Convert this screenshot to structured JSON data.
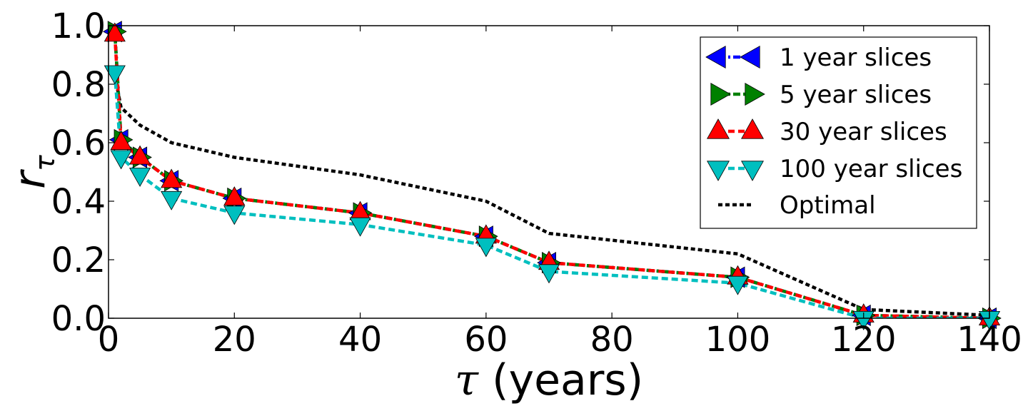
{
  "chart_data": {
    "type": "line",
    "title": "",
    "xlabel_symbol": "τ",
    "xlabel_text": " (years)",
    "ylabel_main": "r",
    "ylabel_sub": "τ",
    "xlim": [
      0,
      140
    ],
    "ylim": [
      0,
      1.0
    ],
    "xticks": [
      0,
      20,
      40,
      60,
      80,
      100,
      120,
      140
    ],
    "xtick_labels": [
      "0",
      "20",
      "40",
      "60",
      "80",
      "100",
      "120",
      "140"
    ],
    "yticks": [
      0,
      0.2,
      0.4,
      0.6,
      0.8,
      1.0
    ],
    "ytick_labels": [
      "0.0",
      "0.2",
      "0.4",
      "0.6",
      "0.8",
      "1.0"
    ],
    "legend_position": "top-right",
    "series": [
      {
        "name": "1 year slices",
        "color": "#0000ff",
        "marker": "triangle-left",
        "line_style": "dash-dot",
        "x": [
          1,
          2,
          5,
          10,
          20,
          40,
          60,
          70,
          100,
          120,
          140
        ],
        "y": [
          0.98,
          0.61,
          0.55,
          0.47,
          0.41,
          0.36,
          0.28,
          0.19,
          0.14,
          0.01,
          0.0
        ]
      },
      {
        "name": "5 year slices",
        "color": "#008000",
        "marker": "triangle-right",
        "line_style": "dash-dot",
        "x": [
          1,
          2,
          5,
          10,
          20,
          40,
          60,
          70,
          100,
          120,
          140
        ],
        "y": [
          0.98,
          0.61,
          0.55,
          0.47,
          0.41,
          0.36,
          0.28,
          0.19,
          0.14,
          0.01,
          0.0
        ]
      },
      {
        "name": "30 year slices",
        "color": "#ff0000",
        "marker": "triangle-up",
        "line_style": "dashed",
        "x": [
          1,
          2,
          5,
          10,
          20,
          40,
          60,
          70,
          100,
          120,
          140
        ],
        "y": [
          0.97,
          0.6,
          0.55,
          0.47,
          0.41,
          0.36,
          0.28,
          0.19,
          0.14,
          0.01,
          0.0
        ]
      },
      {
        "name": "100 year slices",
        "color": "#00bfbf",
        "marker": "triangle-down",
        "line_style": "dashed",
        "x": [
          1,
          2,
          5,
          10,
          20,
          40,
          60,
          70,
          100,
          120,
          140
        ],
        "y": [
          0.84,
          0.55,
          0.49,
          0.41,
          0.36,
          0.32,
          0.25,
          0.16,
          0.12,
          0.0,
          0.0
        ]
      },
      {
        "name": "Optimal",
        "color": "#000000",
        "marker": "none",
        "line_style": "dotted",
        "x": [
          1,
          2,
          5,
          10,
          20,
          40,
          60,
          70,
          100,
          120,
          140
        ],
        "y": [
          0.83,
          0.72,
          0.66,
          0.6,
          0.55,
          0.49,
          0.4,
          0.29,
          0.22,
          0.03,
          0.01
        ]
      }
    ]
  }
}
